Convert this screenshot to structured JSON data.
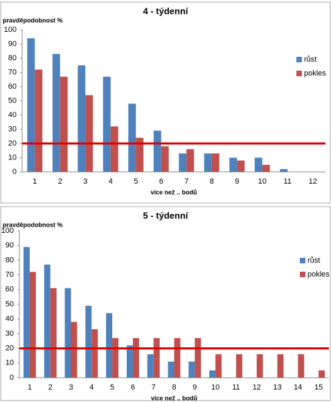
{
  "chart_data": [
    {
      "type": "bar",
      "title": "4 - týdenní",
      "y_label": "pravděpodobnost %",
      "x_label": "více než .. bodů",
      "categories": [
        "1",
        "2",
        "3",
        "4",
        "5",
        "6",
        "7",
        "8",
        "9",
        "10",
        "11",
        "12"
      ],
      "series": [
        {
          "name": "růst",
          "color": "#4f81bd",
          "values": [
            94,
            83,
            75,
            67,
            48,
            29,
            13,
            13,
            10,
            10,
            2,
            0
          ]
        },
        {
          "name": "pokles",
          "color": "#c0504d",
          "values": [
            72,
            67,
            54,
            32,
            24,
            18,
            16,
            13,
            8,
            5,
            0,
            0
          ]
        }
      ],
      "ylim": [
        0,
        100
      ],
      "yticks": [
        0,
        10,
        20,
        30,
        40,
        50,
        60,
        70,
        80,
        90,
        100
      ],
      "reference_line": 20,
      "reference_color": "#e00000",
      "legend": "right"
    },
    {
      "type": "bar",
      "title": "5 - týdenní",
      "y_label": "pravděpodobnost %",
      "x_label": "více než .. bodů",
      "categories": [
        "1",
        "2",
        "3",
        "4",
        "5",
        "6",
        "7",
        "8",
        "9",
        "10",
        "11",
        "12",
        "13",
        "14",
        "15"
      ],
      "series": [
        {
          "name": "růst",
          "color": "#4f81bd",
          "values": [
            89,
            77,
            61,
            49,
            44,
            22,
            16,
            11,
            11,
            5,
            0,
            0,
            0,
            0,
            0
          ]
        },
        {
          "name": "pokles",
          "color": "#c0504d",
          "values": [
            72,
            61,
            38,
            33,
            27,
            27,
            27,
            27,
            27,
            16,
            16,
            16,
            16,
            16,
            5
          ]
        }
      ],
      "ylim": [
        0,
        100
      ],
      "yticks": [
        0,
        10,
        20,
        30,
        40,
        50,
        60,
        70,
        80,
        90,
        100
      ],
      "reference_line": 20,
      "reference_color": "#e00000",
      "legend": "right"
    }
  ]
}
